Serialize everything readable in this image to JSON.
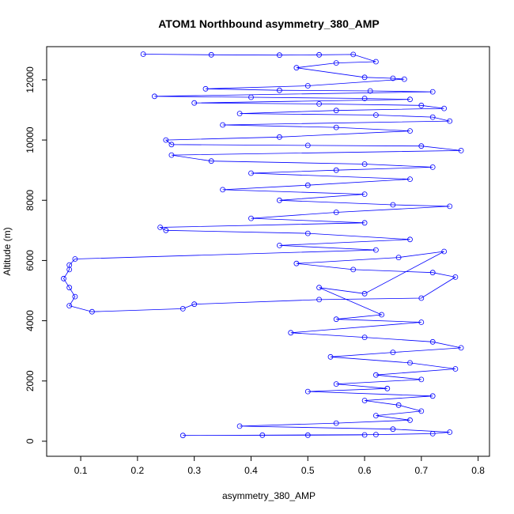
{
  "chart_data": {
    "type": "scatter",
    "title": "ATOM1 Northbound asymmetry_380_AMP",
    "xlabel": "asymmetry_380_AMP",
    "ylabel": "Altitude (m)",
    "xlim": [
      0.04,
      0.82
    ],
    "ylim": [
      -500,
      13100
    ],
    "x_ticks": [
      0.1,
      0.2,
      0.3,
      0.4,
      0.5,
      0.6,
      0.7,
      0.8
    ],
    "x_tick_labels": [
      "0.1",
      "0.2",
      "0.3",
      "0.4",
      "0.5",
      "0.6",
      "0.7",
      "0.8"
    ],
    "y_ticks": [
      0,
      2000,
      4000,
      6000,
      8000,
      10000,
      12000
    ],
    "y_tick_labels": [
      "0",
      "2000",
      "4000",
      "6000",
      "8000",
      "10000",
      "12000"
    ],
    "grid": false,
    "legend": "none",
    "series_color": "#0000ff",
    "marker": "open-circle",
    "connected": true,
    "series": [
      {
        "values": [
          [
            0.21,
            12850
          ],
          [
            0.33,
            12830
          ],
          [
            0.45,
            12820
          ],
          [
            0.52,
            12830
          ],
          [
            0.58,
            12840
          ],
          [
            0.62,
            12600
          ],
          [
            0.55,
            12560
          ],
          [
            0.48,
            12400
          ],
          [
            0.6,
            12080
          ],
          [
            0.65,
            12050
          ],
          [
            0.67,
            12020
          ],
          [
            0.5,
            11800
          ],
          [
            0.32,
            11700
          ],
          [
            0.45,
            11650
          ],
          [
            0.61,
            11630
          ],
          [
            0.72,
            11600
          ],
          [
            0.23,
            11450
          ],
          [
            0.4,
            11420
          ],
          [
            0.6,
            11380
          ],
          [
            0.68,
            11350
          ],
          [
            0.3,
            11230
          ],
          [
            0.52,
            11200
          ],
          [
            0.7,
            11150
          ],
          [
            0.74,
            11050
          ],
          [
            0.55,
            10980
          ],
          [
            0.38,
            10880
          ],
          [
            0.62,
            10830
          ],
          [
            0.72,
            10760
          ],
          [
            0.75,
            10630
          ],
          [
            0.35,
            10500
          ],
          [
            0.55,
            10420
          ],
          [
            0.68,
            10300
          ],
          [
            0.45,
            10100
          ],
          [
            0.25,
            10000
          ],
          [
            0.26,
            9850
          ],
          [
            0.5,
            9820
          ],
          [
            0.7,
            9800
          ],
          [
            0.77,
            9650
          ],
          [
            0.26,
            9500
          ],
          [
            0.33,
            9300
          ],
          [
            0.6,
            9200
          ],
          [
            0.72,
            9100
          ],
          [
            0.55,
            9000
          ],
          [
            0.4,
            8900
          ],
          [
            0.68,
            8700
          ],
          [
            0.5,
            8500
          ],
          [
            0.35,
            8350
          ],
          [
            0.6,
            8200
          ],
          [
            0.45,
            8000
          ],
          [
            0.65,
            7850
          ],
          [
            0.75,
            7800
          ],
          [
            0.55,
            7600
          ],
          [
            0.4,
            7400
          ],
          [
            0.6,
            7250
          ],
          [
            0.24,
            7100
          ],
          [
            0.25,
            7000
          ],
          [
            0.5,
            6900
          ],
          [
            0.68,
            6700
          ],
          [
            0.45,
            6500
          ],
          [
            0.62,
            6350
          ],
          [
            0.09,
            6050
          ],
          [
            0.08,
            5850
          ],
          [
            0.08,
            5700
          ],
          [
            0.07,
            5400
          ],
          [
            0.08,
            5100
          ],
          [
            0.09,
            4800
          ],
          [
            0.08,
            4500
          ],
          [
            0.12,
            4300
          ],
          [
            0.28,
            4400
          ],
          [
            0.3,
            4550
          ],
          [
            0.52,
            4700
          ],
          [
            0.7,
            4750
          ],
          [
            0.76,
            5450
          ],
          [
            0.72,
            5600
          ],
          [
            0.58,
            5700
          ],
          [
            0.48,
            5900
          ],
          [
            0.66,
            6100
          ],
          [
            0.74,
            6300
          ],
          [
            0.6,
            4900
          ],
          [
            0.52,
            5100
          ],
          [
            0.63,
            4200
          ],
          [
            0.55,
            4050
          ],
          [
            0.7,
            3950
          ],
          [
            0.47,
            3600
          ],
          [
            0.6,
            3450
          ],
          [
            0.72,
            3300
          ],
          [
            0.77,
            3100
          ],
          [
            0.65,
            2950
          ],
          [
            0.54,
            2800
          ],
          [
            0.68,
            2600
          ],
          [
            0.76,
            2400
          ],
          [
            0.62,
            2200
          ],
          [
            0.7,
            2050
          ],
          [
            0.55,
            1900
          ],
          [
            0.64,
            1750
          ],
          [
            0.5,
            1650
          ],
          [
            0.72,
            1500
          ],
          [
            0.6,
            1350
          ],
          [
            0.66,
            1200
          ],
          [
            0.7,
            1000
          ],
          [
            0.62,
            850
          ],
          [
            0.68,
            700
          ],
          [
            0.55,
            600
          ],
          [
            0.38,
            500
          ],
          [
            0.65,
            400
          ],
          [
            0.75,
            300
          ],
          [
            0.72,
            250
          ],
          [
            0.62,
            220
          ],
          [
            0.42,
            200
          ],
          [
            0.28,
            190
          ],
          [
            0.5,
            200
          ],
          [
            0.6,
            210
          ]
        ]
      }
    ]
  }
}
